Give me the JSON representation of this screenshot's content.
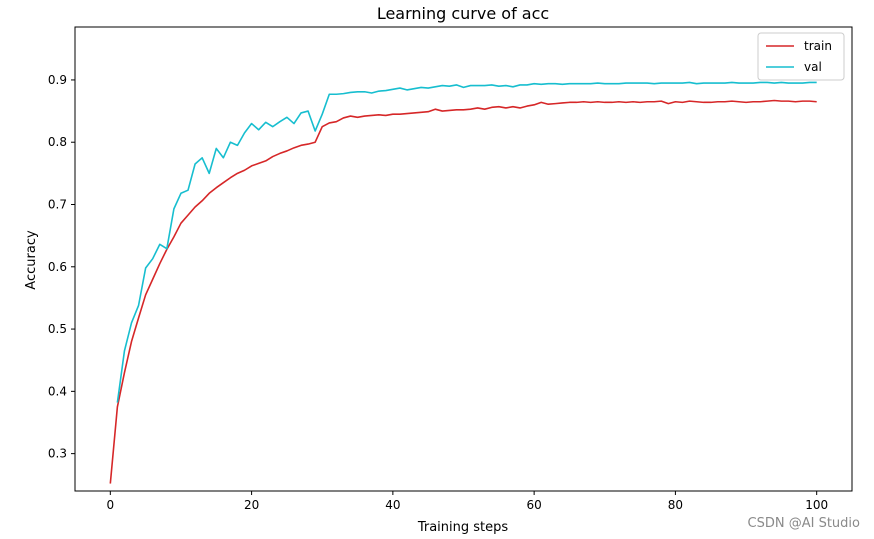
{
  "chart_data": {
    "type": "line",
    "title": "Learning curve of acc",
    "xlabel": "Training steps",
    "ylabel": "Accuracy",
    "xlim": [
      -5,
      105
    ],
    "ylim": [
      0.24,
      0.985
    ],
    "xticks": [
      0,
      20,
      40,
      60,
      80,
      100
    ],
    "yticks": [
      0.3,
      0.4,
      0.5,
      0.6,
      0.7,
      0.8,
      0.9
    ],
    "xtick_labels": [
      "0",
      "20",
      "40",
      "60",
      "80",
      "100"
    ],
    "ytick_labels": [
      "0.3",
      "0.4",
      "0.5",
      "0.6",
      "0.7",
      "0.8",
      "0.9"
    ],
    "legend_position": "top-right",
    "grid": false,
    "series": [
      {
        "name": "train",
        "color": "#d62728",
        "x": [
          0,
          1,
          2,
          3,
          4,
          5,
          6,
          7,
          8,
          9,
          10,
          11,
          12,
          13,
          14,
          15,
          16,
          17,
          18,
          19,
          20,
          21,
          22,
          23,
          24,
          25,
          26,
          27,
          28,
          29,
          30,
          31,
          32,
          33,
          34,
          35,
          36,
          37,
          38,
          39,
          40,
          41,
          42,
          43,
          44,
          45,
          46,
          47,
          48,
          49,
          50,
          51,
          52,
          53,
          54,
          55,
          56,
          57,
          58,
          59,
          60,
          61,
          62,
          63,
          64,
          65,
          66,
          67,
          68,
          69,
          70,
          71,
          72,
          73,
          74,
          75,
          76,
          77,
          78,
          79,
          80,
          81,
          82,
          83,
          84,
          85,
          86,
          87,
          88,
          89,
          90,
          91,
          92,
          93,
          94,
          95,
          96,
          97,
          98,
          99,
          100
        ],
        "values": [
          0.252,
          0.375,
          0.43,
          0.48,
          0.518,
          0.555,
          0.58,
          0.605,
          0.628,
          0.648,
          0.67,
          0.683,
          0.696,
          0.706,
          0.718,
          0.727,
          0.735,
          0.743,
          0.75,
          0.755,
          0.762,
          0.766,
          0.77,
          0.777,
          0.782,
          0.786,
          0.791,
          0.795,
          0.797,
          0.8,
          0.825,
          0.831,
          0.833,
          0.839,
          0.842,
          0.84,
          0.842,
          0.843,
          0.844,
          0.843,
          0.845,
          0.845,
          0.846,
          0.847,
          0.848,
          0.849,
          0.853,
          0.85,
          0.851,
          0.852,
          0.852,
          0.853,
          0.855,
          0.853,
          0.856,
          0.857,
          0.855,
          0.857,
          0.855,
          0.858,
          0.86,
          0.864,
          0.861,
          0.862,
          0.863,
          0.864,
          0.864,
          0.865,
          0.864,
          0.865,
          0.864,
          0.864,
          0.865,
          0.864,
          0.865,
          0.864,
          0.865,
          0.865,
          0.866,
          0.862,
          0.865,
          0.864,
          0.866,
          0.865,
          0.864,
          0.864,
          0.865,
          0.865,
          0.866,
          0.865,
          0.864,
          0.865,
          0.865,
          0.866,
          0.867,
          0.866,
          0.866,
          0.865,
          0.866,
          0.866,
          0.865
        ]
      },
      {
        "name": "val",
        "color": "#17becf",
        "x": [
          1,
          2,
          3,
          4,
          5,
          6,
          7,
          8,
          9,
          10,
          11,
          12,
          13,
          14,
          15,
          16,
          17,
          18,
          19,
          20,
          21,
          22,
          23,
          24,
          25,
          26,
          27,
          28,
          29,
          30,
          31,
          32,
          33,
          34,
          35,
          36,
          37,
          38,
          39,
          40,
          41,
          42,
          43,
          44,
          45,
          46,
          47,
          48,
          49,
          50,
          51,
          52,
          53,
          54,
          55,
          56,
          57,
          58,
          59,
          60,
          61,
          62,
          63,
          64,
          65,
          66,
          67,
          68,
          69,
          70,
          71,
          72,
          73,
          74,
          75,
          76,
          77,
          78,
          79,
          80,
          81,
          82,
          83,
          84,
          85,
          86,
          87,
          88,
          89,
          90,
          91,
          92,
          93,
          94,
          95,
          96,
          97,
          98,
          99,
          100
        ],
        "values": [
          0.382,
          0.465,
          0.51,
          0.538,
          0.598,
          0.613,
          0.636,
          0.629,
          0.693,
          0.718,
          0.723,
          0.765,
          0.775,
          0.75,
          0.79,
          0.775,
          0.8,
          0.795,
          0.815,
          0.83,
          0.82,
          0.832,
          0.825,
          0.833,
          0.84,
          0.83,
          0.847,
          0.85,
          0.818,
          0.845,
          0.877,
          0.877,
          0.878,
          0.88,
          0.881,
          0.881,
          0.879,
          0.882,
          0.883,
          0.885,
          0.887,
          0.884,
          0.886,
          0.888,
          0.887,
          0.889,
          0.891,
          0.89,
          0.892,
          0.888,
          0.891,
          0.891,
          0.891,
          0.892,
          0.89,
          0.891,
          0.889,
          0.892,
          0.892,
          0.894,
          0.893,
          0.894,
          0.894,
          0.893,
          0.894,
          0.894,
          0.894,
          0.894,
          0.895,
          0.894,
          0.894,
          0.894,
          0.895,
          0.895,
          0.895,
          0.895,
          0.894,
          0.895,
          0.895,
          0.895,
          0.895,
          0.896,
          0.894,
          0.895,
          0.895,
          0.895,
          0.895,
          0.896,
          0.895,
          0.895,
          0.895,
          0.896,
          0.896,
          0.895,
          0.896,
          0.895,
          0.895,
          0.895,
          0.896,
          0.896
        ]
      }
    ]
  },
  "watermark": "CSDN @AI Studio"
}
